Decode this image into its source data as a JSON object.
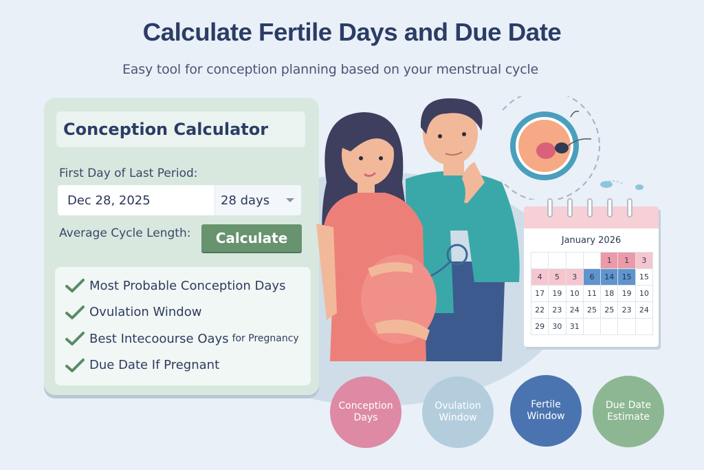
{
  "header": {
    "title": "Calculate Fertile Days and Due Date",
    "subtitle": "Easy tool for conception planning based on your menstrual cycle"
  },
  "calculator": {
    "title": "Conception Calculator",
    "first_day_label": "First Day of Last Period:",
    "first_day_value": "Dec 28, 2025",
    "cycle_length_label": "Average Cycle Length:",
    "cycle_length_value": "28 days",
    "calculate_label": "Calculate",
    "features": [
      {
        "label": "Most Probable Conception Days",
        "suffix": ""
      },
      {
        "label": "Ovulation Window",
        "suffix": ""
      },
      {
        "label": "Best Intecoourse Oays",
        "suffix": "for Pregnancy"
      },
      {
        "label": "Due Date If Pregnant",
        "suffix": ""
      }
    ]
  },
  "calendar": {
    "title": "January 2026",
    "rows": [
      [
        {
          "v": "",
          "c": ""
        },
        {
          "v": "",
          "c": ""
        },
        {
          "v": "",
          "c": ""
        },
        {
          "v": "",
          "c": ""
        },
        {
          "v": "1",
          "c": "pinkdark"
        },
        {
          "v": "1",
          "c": "pinkdark"
        },
        {
          "v": "3",
          "c": "pink"
        }
      ],
      [
        {
          "v": "4",
          "c": "pink"
        },
        {
          "v": "5",
          "c": "pink"
        },
        {
          "v": "3",
          "c": "pink"
        },
        {
          "v": "6",
          "c": "blue"
        },
        {
          "v": "14",
          "c": "blue"
        },
        {
          "v": "15",
          "c": "blue"
        },
        {
          "v": "15",
          "c": ""
        }
      ],
      [
        {
          "v": "17",
          "c": ""
        },
        {
          "v": "19",
          "c": ""
        },
        {
          "v": "10",
          "c": ""
        },
        {
          "v": "11",
          "c": ""
        },
        {
          "v": "18",
          "c": ""
        },
        {
          "v": "19",
          "c": ""
        },
        {
          "v": "10",
          "c": ""
        }
      ],
      [
        {
          "v": "22",
          "c": ""
        },
        {
          "v": "23",
          "c": ""
        },
        {
          "v": "24",
          "c": ""
        },
        {
          "v": "25",
          "c": ""
        },
        {
          "v": "25",
          "c": ""
        },
        {
          "v": "23",
          "c": ""
        },
        {
          "v": "24",
          "c": ""
        }
      ],
      [
        {
          "v": "29",
          "c": ""
        },
        {
          "v": "30",
          "c": ""
        },
        {
          "v": "31",
          "c": ""
        },
        {
          "v": "",
          "c": ""
        },
        {
          "v": "",
          "c": ""
        },
        {
          "v": "",
          "c": ""
        },
        {
          "v": "",
          "c": ""
        }
      ]
    ]
  },
  "legend": [
    {
      "label": "Conception\nDays",
      "color": "#de8aa5"
    },
    {
      "label": "Ovulation\nWindow",
      "color": "#b3cddd"
    },
    {
      "label": "Fertile\nWindow",
      "color": "#4a74b0"
    },
    {
      "label": "Due Date\nEstimate",
      "color": "#8cb792"
    }
  ],
  "colors": {
    "background": "#e9f0f8",
    "title": "#2b3d66",
    "panel": "#d8e8df",
    "button": "#67936f",
    "check": "#5a8a63"
  }
}
